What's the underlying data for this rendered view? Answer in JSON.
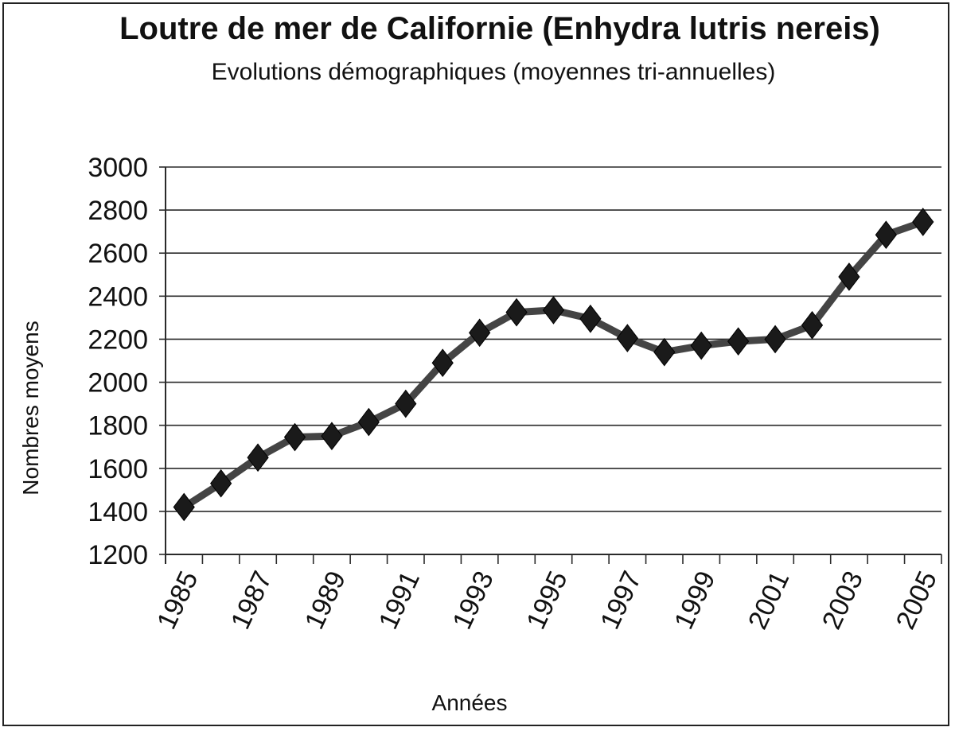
{
  "chart_data": {
    "type": "line",
    "title": "Loutre de mer de Californie (Enhydra lutris nereis)",
    "subtitle": "Evolutions démographiques (moyennes tri-annuelles)",
    "xlabel": "Années",
    "ylabel": "Nombres moyens",
    "ylim": [
      1200,
      3000
    ],
    "yticks": [
      1200,
      1400,
      1600,
      1800,
      2000,
      2200,
      2400,
      2600,
      2800,
      3000
    ],
    "xticks": [
      "1985",
      "1987",
      "1989",
      "1991",
      "1993",
      "1995",
      "1997",
      "1999",
      "2001",
      "2003",
      "2005"
    ],
    "x": [
      1985,
      1986,
      1987,
      1988,
      1989,
      1990,
      1991,
      1992,
      1993,
      1994,
      1995,
      1996,
      1997,
      1998,
      1999,
      2000,
      2001,
      2002,
      2003,
      2004,
      2005
    ],
    "series": [
      {
        "values": [
          1420,
          1530,
          1650,
          1745,
          1750,
          1815,
          1900,
          2090,
          2230,
          2325,
          2335,
          2295,
          2205,
          2140,
          2170,
          2190,
          2200,
          2265,
          2490,
          2685,
          2745
        ]
      }
    ],
    "grid": true,
    "line_color": "#444444",
    "marker_color": "#1a1a1a",
    "marker": "diamond"
  }
}
